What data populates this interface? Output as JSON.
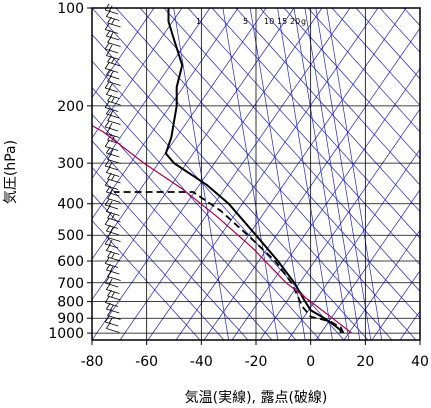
{
  "chart_data": {
    "type": "line",
    "xlabel": "気温(実線), 露点(破線)",
    "ylabel": "気圧(hPa)",
    "xlim": [
      -80,
      40
    ],
    "ylim": [
      1050,
      100
    ],
    "y_scale": "log",
    "x_ticks": [
      -80,
      -60,
      -40,
      -20,
      0,
      20,
      40
    ],
    "y_ticks": [
      100,
      200,
      300,
      400,
      500,
      600,
      700,
      800,
      900,
      1000
    ],
    "mixing_ratio_labels": [
      "1",
      "5",
      "10",
      "15",
      "20",
      "g"
    ],
    "series": [
      {
        "style": "solid",
        "points": [
          {
            "x": 11,
            "y": 1000
          },
          {
            "x": 11,
            "y": 980
          },
          {
            "x": 9,
            "y": 950
          },
          {
            "x": 5,
            "y": 900
          },
          {
            "x": 0,
            "y": 850
          },
          {
            "x": -2,
            "y": 800
          },
          {
            "x": -6,
            "y": 700
          },
          {
            "x": -12,
            "y": 600
          },
          {
            "x": -20,
            "y": 500
          },
          {
            "x": -30,
            "y": 400
          },
          {
            "x": -38,
            "y": 350
          },
          {
            "x": -50,
            "y": 300
          },
          {
            "x": -53,
            "y": 280
          },
          {
            "x": -51,
            "y": 250
          },
          {
            "x": -49,
            "y": 200
          },
          {
            "x": -49,
            "y": 175
          },
          {
            "x": -47,
            "y": 150
          },
          {
            "x": -50,
            "y": 125
          },
          {
            "x": -52,
            "y": 110
          },
          {
            "x": -52,
            "y": 100
          }
        ]
      },
      {
        "style": "dashed",
        "points": [
          {
            "x": 12,
            "y": 1000
          },
          {
            "x": 11,
            "y": 960
          },
          {
            "x": 7,
            "y": 920
          },
          {
            "x": 0,
            "y": 890
          },
          {
            "x": -3,
            "y": 830
          },
          {
            "x": -7,
            "y": 700
          },
          {
            "x": -13,
            "y": 600
          },
          {
            "x": -23,
            "y": 500
          },
          {
            "x": -33,
            "y": 420
          },
          {
            "x": -43,
            "y": 368
          },
          {
            "x": -72,
            "y": 368
          }
        ]
      },
      {
        "style": "reference",
        "color": "#b0004a",
        "points": [
          {
            "x": 15,
            "y": 1000
          },
          {
            "x": 8,
            "y": 900
          },
          {
            "x": 0,
            "y": 800
          },
          {
            "x": -9,
            "y": 700
          },
          {
            "x": -21,
            "y": 550
          },
          {
            "x": -34,
            "y": 440
          },
          {
            "x": -47,
            "y": 360
          },
          {
            "x": -61,
            "y": 300
          },
          {
            "x": -76,
            "y": 240
          },
          {
            "x": -80,
            "y": 230
          }
        ]
      }
    ],
    "colors": {
      "grid": "#000000",
      "background_lines": "#2222cc",
      "reference": "#b0004a"
    }
  }
}
